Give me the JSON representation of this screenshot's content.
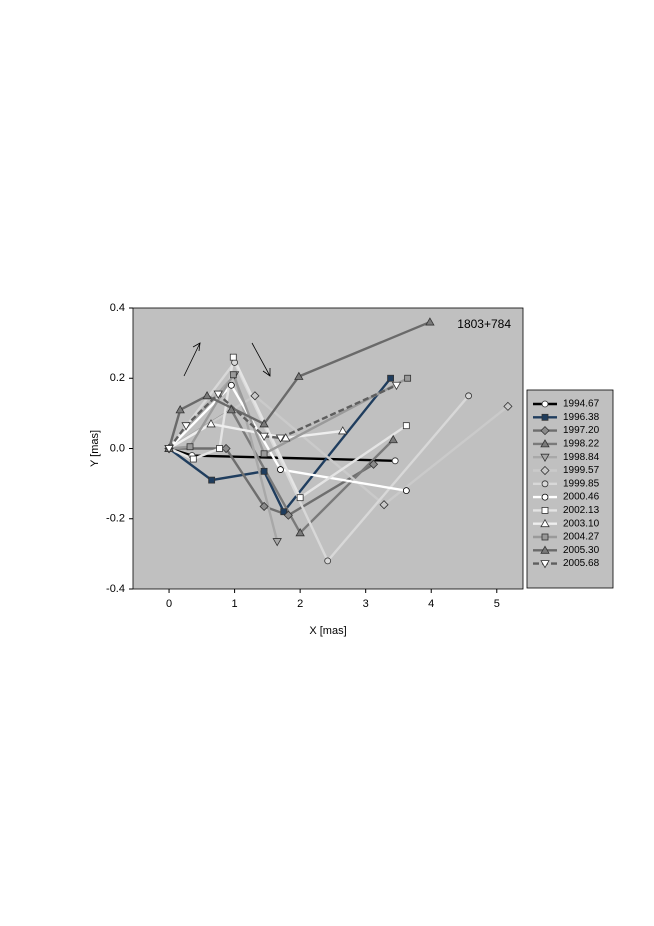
{
  "chart_data": {
    "type": "line",
    "annotation": "1803+784",
    "x_label": "X [mas]",
    "y_label": "Y [mas]",
    "xlim": [
      -0.55,
      5.4
    ],
    "ylim": [
      -0.4,
      0.4
    ],
    "xticks": [
      0,
      1,
      2,
      3,
      4,
      5
    ],
    "yticks": [
      -0.4,
      -0.2,
      {
        "value": 0,
        "label": "0.0"
      },
      0.2,
      0.4
    ],
    "background": "#c0c0c0",
    "legend": "right",
    "series": [
      {
        "name": "1994.67",
        "color": "#000000",
        "marker": "circle",
        "marker_fill": "#ffffff",
        "x": [
          0,
          0.35,
          3.45
        ],
        "values": [
          0,
          -0.02,
          -0.035
        ]
      },
      {
        "name": "1996.38",
        "color": "#1f3d5e",
        "marker": "square",
        "marker_fill": "#1f3d5e",
        "x": [
          0,
          0.65,
          1.45,
          1.75,
          3.38
        ],
        "values": [
          0,
          -0.09,
          -0.065,
          -0.18,
          0.2
        ]
      },
      {
        "name": "1997.20",
        "color": "#6e6e6e",
        "marker": "diamond",
        "marker_fill": "#8a8a8a",
        "x": [
          0,
          0.87,
          1.45,
          1.82,
          3.12
        ],
        "values": [
          0,
          0,
          -0.165,
          -0.19,
          -0.045
        ]
      },
      {
        "name": "1998.22",
        "color": "#7a7a7a",
        "marker": "triangle",
        "marker_fill": "#7a7a7a",
        "x": [
          0,
          0.95,
          2.0,
          3.42
        ],
        "values": [
          0,
          0.11,
          -0.24,
          0.025
        ]
      },
      {
        "name": "1998.84",
        "color": "#a8a8a8",
        "marker": "triangle-down",
        "marker_fill": "#a8a8a8",
        "x": [
          0,
          1.0,
          1.65
        ],
        "values": [
          0,
          0.21,
          -0.265
        ]
      },
      {
        "name": "1999.57",
        "color": "#cacaca",
        "marker": "diamond",
        "marker_fill": "#cacaca",
        "x": [
          0,
          1.31,
          3.28,
          5.17
        ],
        "values": [
          0,
          0.15,
          -0.16,
          0.12
        ]
      },
      {
        "name": "1999.85",
        "color": "#d8d8d8",
        "marker": "circle",
        "marker_fill": "#d8d8d8",
        "x": [
          0,
          1.0,
          2.42,
          4.57
        ],
        "values": [
          0,
          0.245,
          -0.32,
          0.15
        ]
      },
      {
        "name": "2000.46",
        "color": "#ffffff",
        "marker": "circle",
        "marker_fill": "#ffffff",
        "x": [
          0,
          0.95,
          1.7,
          3.62
        ],
        "values": [
          0,
          0.18,
          -0.06,
          -0.12
        ]
      },
      {
        "name": "2002.13",
        "color": "#e4e4e4",
        "marker": "square",
        "marker_fill": "#ffffff",
        "x": [
          0,
          0.37,
          0.77,
          0.98,
          2.0,
          3.62
        ],
        "values": [
          0,
          -0.03,
          0,
          0.26,
          -0.14,
          0.065
        ]
      },
      {
        "name": "2003.10",
        "color": "#eeeeee",
        "marker": "triangle",
        "marker_fill": "#ffffff",
        "x": [
          0,
          0.64,
          1.78,
          2.65
        ],
        "values": [
          0,
          0.07,
          0.03,
          0.05
        ]
      },
      {
        "name": "2004.27",
        "color": "#9a9a9a",
        "marker": "square",
        "marker_fill": "#9a9a9a",
        "x": [
          0,
          0.32,
          0.98,
          1.45,
          3.64
        ],
        "values": [
          0,
          0.005,
          0.21,
          -0.015,
          0.2
        ]
      },
      {
        "name": "2005.30",
        "color": "#6a6a6a",
        "marker": "triangle",
        "marker_fill": "#7a7a7a",
        "x": [
          0,
          0.17,
          0.58,
          1.45,
          1.98,
          3.98
        ],
        "values": [
          0,
          0.11,
          0.15,
          0.07,
          0.205,
          0.36
        ]
      },
      {
        "name": "2005.68",
        "color": "#5e5e5e",
        "marker": "triangle-down",
        "marker_fill": "#ffffff",
        "dashed": true,
        "x": [
          0,
          0.26,
          0.75,
          1.45,
          1.7,
          3.47
        ],
        "values": [
          0,
          0.065,
          0.155,
          0.035,
          0.03,
          0.18
        ]
      }
    ]
  }
}
